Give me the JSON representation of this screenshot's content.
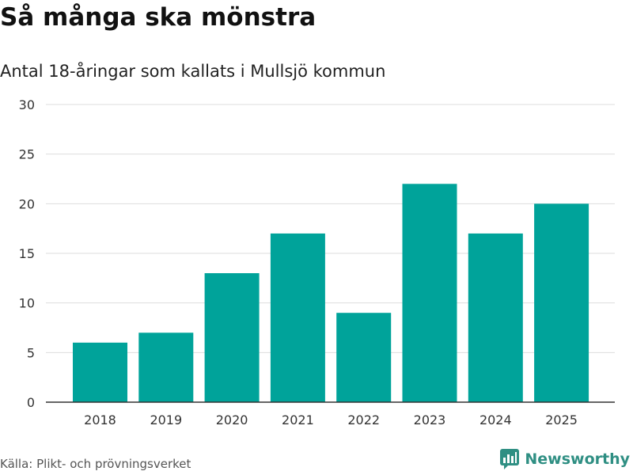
{
  "header": {
    "title": "Så många ska mönstra",
    "subtitle": "Antal 18-åringar som kallats i Mullsjö kommun"
  },
  "footer": {
    "source": "Källa: Plikt- och prövningsverket",
    "brand": "Newsworthy"
  },
  "colors": {
    "bar": "#00a39a",
    "grid": "#dddddd",
    "axis": "#333333",
    "brand": "#2f8f83"
  },
  "chart_data": {
    "type": "bar",
    "categories": [
      "2018",
      "2019",
      "2020",
      "2021",
      "2022",
      "2023",
      "2024",
      "2025"
    ],
    "values": [
      6,
      7,
      13,
      17,
      9,
      22,
      17,
      20
    ],
    "ylim": [
      0,
      30
    ],
    "yticks": [
      0,
      5,
      10,
      15,
      20,
      25,
      30
    ],
    "grid": true
  }
}
